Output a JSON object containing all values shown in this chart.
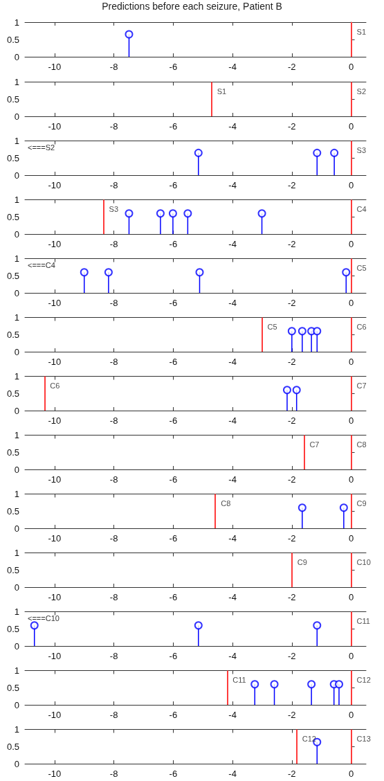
{
  "chart_data": [
    {
      "type": "lollipop",
      "title": "Predictions before each seizure, Patient B",
      "x": [
        -7.49
      ],
      "values": [
        0.65
      ],
      "color": "#0000ff",
      "marker": "circle",
      "xlim": [
        -11,
        0.5
      ],
      "xticks": [
        -10,
        -8,
        -6,
        -4,
        -2,
        0
      ],
      "ylim": [
        0,
        1
      ],
      "yticks": [
        0,
        0.5,
        1
      ],
      "ref_lines": [
        {
          "axis": "x",
          "value": 0,
          "label": "S1",
          "color": "#ff3b3b"
        }
      ]
    },
    {
      "type": "lollipop",
      "color": "#0000ff",
      "marker": "circle",
      "xlim": [
        -11,
        0.5
      ],
      "xticks": [
        -10,
        -8,
        -6,
        -4,
        -2,
        0
      ],
      "ylim": [
        0,
        1
      ],
      "yticks": [
        0,
        0.5,
        1
      ],
      "ref_lines": [
        {
          "axis": "x",
          "value": -4.71,
          "label": "S1",
          "color": "#ff3b3b"
        },
        {
          "axis": "x",
          "value": 0,
          "label": "S2",
          "color": "#ff3b3b"
        }
      ]
    },
    {
      "type": "lollipop",
      "x": [
        -5.15,
        -1.15,
        -0.57
      ],
      "values": [
        0.65,
        0.65,
        0.65
      ],
      "color": "#0000ff",
      "marker": "circle",
      "xlim": [
        -11,
        0.5
      ],
      "xticks": [
        -10,
        -8,
        -6,
        -4,
        -2,
        0
      ],
      "ylim": [
        0,
        1
      ],
      "yticks": [
        0,
        0.5,
        1
      ],
      "ref_lines": [
        {
          "axis": "x",
          "value": 0,
          "label": "S3",
          "color": "#ff3b3b"
        }
      ],
      "annotations": [
        "<===S2"
      ]
    },
    {
      "type": "lollipop",
      "x": [
        -7.49,
        -6.43,
        -6.01,
        -5.51,
        -3.01
      ],
      "values": [
        0.6,
        0.6,
        0.6,
        0.6,
        0.6
      ],
      "color": "#0000ff",
      "marker": "circle",
      "xlim": [
        -11,
        0.5
      ],
      "xticks": [
        -10,
        -8,
        -6,
        -4,
        -2,
        0
      ],
      "ylim": [
        0,
        1
      ],
      "yticks": [
        0,
        0.5,
        1
      ],
      "ref_lines": [
        {
          "axis": "x",
          "value": -8.35,
          "label": "S3",
          "color": "#ff3b3b"
        },
        {
          "axis": "x",
          "value": 0,
          "label": "C4",
          "color": "#ff3b3b"
        }
      ]
    },
    {
      "type": "lollipop",
      "x": [
        -9.0,
        -8.18,
        -5.11,
        -0.17
      ],
      "values": [
        0.6,
        0.6,
        0.6,
        0.6
      ],
      "color": "#0000ff",
      "marker": "circle",
      "xlim": [
        -11,
        0.5
      ],
      "xticks": [
        -10,
        -8,
        -6,
        -4,
        -2,
        0
      ],
      "ylim": [
        0,
        1
      ],
      "yticks": [
        0,
        0.5,
        1
      ],
      "ref_lines": [
        {
          "axis": "x",
          "value": 0,
          "label": "C5",
          "color": "#ff3b3b"
        }
      ],
      "annotations": [
        "<===C4"
      ]
    },
    {
      "type": "lollipop",
      "x": [
        -2.0,
        -1.65,
        -1.34,
        -1.15
      ],
      "values": [
        0.6,
        0.6,
        0.6,
        0.6
      ],
      "color": "#0000ff",
      "marker": "circle",
      "xlim": [
        -11,
        0.5
      ],
      "xticks": [
        -10,
        -8,
        -6,
        -4,
        -2,
        0
      ],
      "ylim": [
        0,
        1
      ],
      "yticks": [
        0,
        0.5,
        1
      ],
      "ref_lines": [
        {
          "axis": "x",
          "value": -3.01,
          "label": "C5",
          "color": "#ff3b3b"
        },
        {
          "axis": "x",
          "value": 0,
          "label": "C6",
          "color": "#ff3b3b"
        }
      ]
    },
    {
      "type": "lollipop",
      "x": [
        -2.16,
        -1.84
      ],
      "values": [
        0.6,
        0.6
      ],
      "color": "#0000ff",
      "marker": "circle",
      "xlim": [
        -11,
        0.5
      ],
      "xticks": [
        -10,
        -8,
        -6,
        -4,
        -2,
        0
      ],
      "ylim": [
        0,
        1
      ],
      "yticks": [
        0,
        0.5,
        1
      ],
      "ref_lines": [
        {
          "axis": "x",
          "value": -10.34,
          "label": "C6",
          "color": "#ff3b3b"
        },
        {
          "axis": "x",
          "value": 0,
          "label": "C7",
          "color": "#ff3b3b"
        }
      ]
    },
    {
      "type": "lollipop",
      "color": "#0000ff",
      "marker": "circle",
      "xlim": [
        -11,
        0.5
      ],
      "xticks": [
        -10,
        -8,
        -6,
        -4,
        -2,
        0
      ],
      "ylim": [
        0,
        1
      ],
      "yticks": [
        0,
        0.5,
        1
      ],
      "ref_lines": [
        {
          "axis": "x",
          "value": -1.59,
          "label": "C7",
          "color": "#ff3b3b"
        },
        {
          "axis": "x",
          "value": 0,
          "label": "C8",
          "color": "#ff3b3b"
        }
      ]
    },
    {
      "type": "lollipop",
      "x": [
        -1.65,
        -0.25
      ],
      "values": [
        0.6,
        0.6
      ],
      "color": "#0000ff",
      "marker": "circle",
      "xlim": [
        -11,
        0.5
      ],
      "xticks": [
        -10,
        -8,
        -6,
        -4,
        -2,
        0
      ],
      "ylim": [
        0,
        1
      ],
      "yticks": [
        0,
        0.5,
        1
      ],
      "ref_lines": [
        {
          "axis": "x",
          "value": -4.58,
          "label": "C8",
          "color": "#ff3b3b"
        },
        {
          "axis": "x",
          "value": 0,
          "label": "C9",
          "color": "#ff3b3b"
        }
      ]
    },
    {
      "type": "lollipop",
      "color": "#0000ff",
      "marker": "circle",
      "xlim": [
        -11,
        0.5
      ],
      "xticks": [
        -10,
        -8,
        -6,
        -4,
        -2,
        0
      ],
      "ylim": [
        0,
        1
      ],
      "yticks": [
        0,
        0.5,
        1
      ],
      "ref_lines": [
        {
          "axis": "x",
          "value": -2.0,
          "label": "C9",
          "color": "#ff3b3b"
        },
        {
          "axis": "x",
          "value": 0,
          "label": "C10",
          "color": "#ff3b3b"
        }
      ]
    },
    {
      "type": "lollipop",
      "x": [
        -10.68,
        -5.15,
        -1.15
      ],
      "values": [
        0.6,
        0.6,
        0.6
      ],
      "color": "#0000ff",
      "marker": "circle",
      "xlim": [
        -11,
        0.5
      ],
      "xticks": [
        -10,
        -8,
        -6,
        -4,
        -2,
        0
      ],
      "ylim": [
        0,
        1
      ],
      "yticks": [
        0,
        0.5,
        1
      ],
      "ref_lines": [
        {
          "axis": "x",
          "value": 0,
          "label": "C11",
          "color": "#ff3b3b"
        }
      ],
      "annotations": [
        "<===C10"
      ]
    },
    {
      "type": "lollipop",
      "x": [
        -3.25,
        -2.59,
        -1.34,
        -0.58,
        -0.41
      ],
      "values": [
        0.6,
        0.6,
        0.6,
        0.6,
        0.6
      ],
      "color": "#0000ff",
      "marker": "circle",
      "xlim": [
        -11,
        0.5
      ],
      "xticks": [
        -10,
        -8,
        -6,
        -4,
        -2,
        0
      ],
      "ylim": [
        0,
        1
      ],
      "yticks": [
        0,
        0.5,
        1
      ],
      "ref_lines": [
        {
          "axis": "x",
          "value": -4.18,
          "label": "C11",
          "color": "#ff3b3b"
        },
        {
          "axis": "x",
          "value": 0,
          "label": "C12",
          "color": "#ff3b3b"
        }
      ]
    },
    {
      "type": "lollipop",
      "x": [
        -1.15
      ],
      "values": [
        0.63
      ],
      "color": "#0000ff",
      "marker": "circle",
      "xlim": [
        -11,
        0.5
      ],
      "xticks": [
        -10,
        -8,
        -6,
        -4,
        -2,
        0
      ],
      "ylim": [
        0,
        1
      ],
      "yticks": [
        0,
        0.5,
        1
      ],
      "ref_lines": [
        {
          "axis": "x",
          "value": -1.84,
          "label": "C12",
          "color": "#ff3b3b"
        },
        {
          "axis": "x",
          "value": 0,
          "label": "C13",
          "color": "#ff3b3b"
        }
      ]
    }
  ]
}
